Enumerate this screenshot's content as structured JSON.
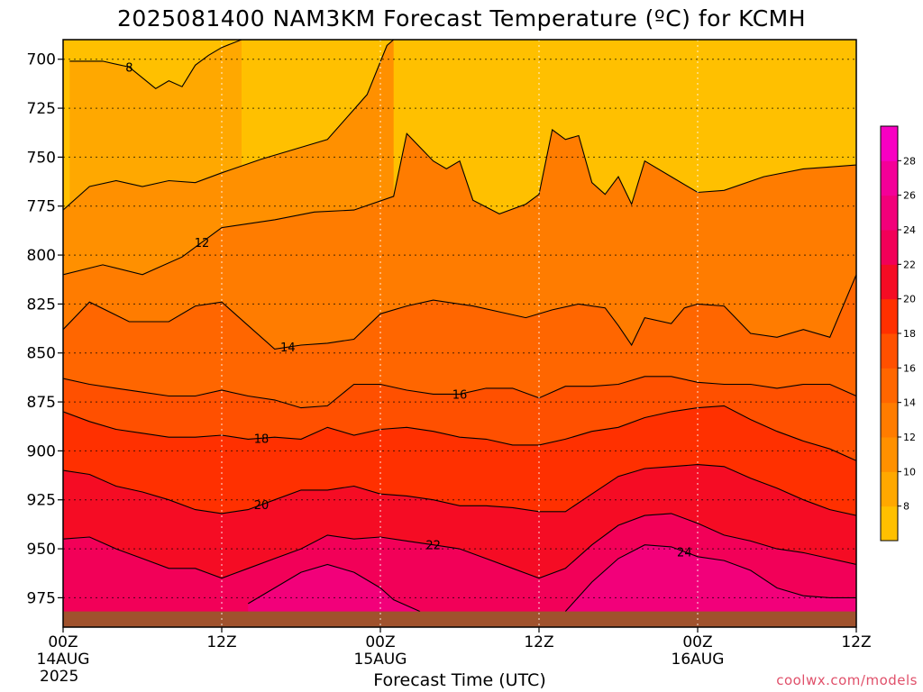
{
  "chart_data": {
    "type": "heatmap",
    "title": "2025081400 NAM3KM Forecast Temperature (ºC) for KCMH",
    "xlabel": "Forecast Time (UTC)",
    "credit": "coolwx.com/models",
    "x_ticks": [
      {
        "label": "00Z",
        "sub": "14AUG",
        "sub2": "2025",
        "hour": 0
      },
      {
        "label": "12Z",
        "sub": "",
        "sub2": "",
        "hour": 12
      },
      {
        "label": "00Z",
        "sub": "15AUG",
        "sub2": "",
        "hour": 24
      },
      {
        "label": "12Z",
        "sub": "",
        "sub2": "",
        "hour": 36
      },
      {
        "label": "00Z",
        "sub": "16AUG",
        "sub2": "",
        "hour": 48
      },
      {
        "label": "12Z",
        "sub": "",
        "sub2": "",
        "hour": 60
      }
    ],
    "x_range_hours": [
      0,
      60
    ],
    "y_axis": "pressure (hPa), inverted",
    "y_ticks": [
      700,
      725,
      750,
      775,
      800,
      825,
      850,
      875,
      900,
      925,
      950,
      975
    ],
    "y_range": [
      690,
      990
    ],
    "colorbar": {
      "levels": [
        6,
        8,
        10,
        12,
        14,
        16,
        18,
        20,
        22,
        24,
        26,
        28,
        30
      ],
      "tick_labels": [
        8,
        10,
        12,
        14,
        16,
        18,
        20,
        22,
        24,
        26,
        28
      ],
      "colors": [
        "#ffc000",
        "#ffa800",
        "#ff9000",
        "#ff7c00",
        "#ff6600",
        "#ff5000",
        "#ff3000",
        "#f50c24",
        "#f20058",
        "#f2007a",
        "#f40098",
        "#f800c2"
      ]
    },
    "surface_color": "#a0522d",
    "surface_pressure": 982,
    "contours": [
      {
        "value": 8,
        "points": [
          [
            0.5,
            701
          ],
          [
            3,
            701
          ],
          [
            5,
            704
          ],
          [
            7,
            715
          ],
          [
            8,
            711
          ],
          [
            9,
            714
          ],
          [
            10,
            703
          ],
          [
            11,
            698
          ],
          [
            12,
            694
          ],
          [
            13.5,
            690
          ]
        ],
        "label_at": 5
      },
      {
        "value": 10,
        "points": [
          [
            0,
            777
          ],
          [
            2,
            765
          ],
          [
            4,
            762
          ],
          [
            6,
            765
          ],
          [
            8,
            762
          ],
          [
            10,
            763
          ],
          [
            12,
            758
          ],
          [
            15,
            751
          ],
          [
            18,
            745
          ],
          [
            20,
            741
          ],
          [
            23,
            718
          ],
          [
            24.5,
            693
          ],
          [
            25,
            690
          ]
        ],
        "label_at": null
      },
      {
        "value": 12,
        "points": [
          [
            0,
            810
          ],
          [
            3,
            805
          ],
          [
            6,
            810
          ],
          [
            9,
            801
          ],
          [
            12,
            786
          ],
          [
            16,
            782
          ],
          [
            19,
            778
          ],
          [
            22,
            777
          ],
          [
            25,
            770
          ],
          [
            26,
            738
          ],
          [
            27,
            745
          ],
          [
            28,
            752
          ],
          [
            29,
            756
          ],
          [
            30,
            752
          ],
          [
            31,
            772
          ],
          [
            33,
            779
          ],
          [
            35,
            774
          ],
          [
            36,
            769
          ],
          [
            37,
            736
          ],
          [
            38,
            741
          ],
          [
            39,
            739
          ],
          [
            40,
            763
          ],
          [
            41,
            769
          ],
          [
            42,
            760
          ],
          [
            43,
            774
          ],
          [
            44,
            752
          ],
          [
            46,
            760
          ],
          [
            48,
            768
          ],
          [
            50,
            767
          ],
          [
            53,
            760
          ],
          [
            56,
            756
          ],
          [
            58,
            755
          ],
          [
            60,
            754
          ]
        ],
        "label_at": 10.5
      },
      {
        "value": 14,
        "points": [
          [
            0,
            838
          ],
          [
            2,
            824
          ],
          [
            5,
            834
          ],
          [
            8,
            834
          ],
          [
            10,
            826
          ],
          [
            12,
            824
          ],
          [
            14,
            836
          ],
          [
            16,
            848
          ],
          [
            18,
            846
          ],
          [
            20,
            845
          ],
          [
            22,
            843
          ],
          [
            24,
            830
          ],
          [
            26,
            826
          ],
          [
            28,
            823
          ],
          [
            31,
            826
          ],
          [
            33,
            829
          ],
          [
            35,
            832
          ],
          [
            37,
            828
          ],
          [
            39,
            825
          ],
          [
            41,
            827
          ],
          [
            42,
            836
          ],
          [
            43,
            846
          ],
          [
            44,
            832
          ],
          [
            46,
            835
          ],
          [
            47,
            827
          ],
          [
            48,
            825
          ],
          [
            50,
            826
          ],
          [
            52,
            840
          ],
          [
            54,
            842
          ],
          [
            56,
            838
          ],
          [
            58,
            842
          ],
          [
            60,
            810
          ]
        ],
        "label_at": 17
      },
      {
        "value": 16,
        "points": [
          [
            0,
            863
          ],
          [
            2,
            866
          ],
          [
            4,
            868
          ],
          [
            6,
            870
          ],
          [
            8,
            872
          ],
          [
            10,
            872
          ],
          [
            12,
            869
          ],
          [
            14,
            872
          ],
          [
            16,
            874
          ],
          [
            18,
            878
          ],
          [
            20,
            877
          ],
          [
            22,
            866
          ],
          [
            24,
            866
          ],
          [
            26,
            869
          ],
          [
            28,
            871
          ],
          [
            30,
            871
          ],
          [
            32,
            868
          ],
          [
            34,
            868
          ],
          [
            36,
            873
          ],
          [
            38,
            867
          ],
          [
            40,
            867
          ],
          [
            42,
            866
          ],
          [
            44,
            862
          ],
          [
            46,
            862
          ],
          [
            48,
            865
          ],
          [
            50,
            866
          ],
          [
            52,
            866
          ],
          [
            54,
            868
          ],
          [
            56,
            866
          ],
          [
            58,
            866
          ],
          [
            60,
            872
          ]
        ],
        "label_at": 30
      },
      {
        "value": 18,
        "points": [
          [
            0,
            880
          ],
          [
            2,
            885
          ],
          [
            4,
            889
          ],
          [
            6,
            891
          ],
          [
            8,
            893
          ],
          [
            10,
            893
          ],
          [
            12,
            892
          ],
          [
            14,
            894
          ],
          [
            16,
            893
          ],
          [
            18,
            894
          ],
          [
            20,
            888
          ],
          [
            22,
            892
          ],
          [
            24,
            889
          ],
          [
            26,
            888
          ],
          [
            28,
            890
          ],
          [
            30,
            893
          ],
          [
            32,
            894
          ],
          [
            34,
            897
          ],
          [
            36,
            897
          ],
          [
            38,
            894
          ],
          [
            40,
            890
          ],
          [
            42,
            888
          ],
          [
            44,
            883
          ],
          [
            46,
            880
          ],
          [
            48,
            878
          ],
          [
            50,
            877
          ],
          [
            52,
            884
          ],
          [
            54,
            890
          ],
          [
            56,
            895
          ],
          [
            58,
            899
          ],
          [
            60,
            905
          ]
        ],
        "label_at": 15
      },
      {
        "value": 20,
        "points": [
          [
            0,
            910
          ],
          [
            2,
            912
          ],
          [
            4,
            918
          ],
          [
            6,
            921
          ],
          [
            8,
            925
          ],
          [
            10,
            930
          ],
          [
            12,
            932
          ],
          [
            14,
            930
          ],
          [
            16,
            925
          ],
          [
            18,
            920
          ],
          [
            20,
            920
          ],
          [
            22,
            918
          ],
          [
            24,
            922
          ],
          [
            26,
            923
          ],
          [
            28,
            925
          ],
          [
            30,
            928
          ],
          [
            32,
            928
          ],
          [
            34,
            929
          ],
          [
            36,
            931
          ],
          [
            38,
            931
          ],
          [
            40,
            922
          ],
          [
            42,
            913
          ],
          [
            44,
            909
          ],
          [
            46,
            908
          ],
          [
            48,
            907
          ],
          [
            50,
            908
          ],
          [
            52,
            914
          ],
          [
            54,
            919
          ],
          [
            56,
            925
          ],
          [
            58,
            930
          ],
          [
            60,
            933
          ]
        ],
        "label_at": 15
      },
      {
        "value": 22,
        "points": [
          [
            0,
            945
          ],
          [
            2,
            944
          ],
          [
            4,
            950
          ],
          [
            6,
            955
          ],
          [
            8,
            960
          ],
          [
            10,
            960
          ],
          [
            12,
            965
          ],
          [
            14,
            960
          ],
          [
            16,
            955
          ],
          [
            18,
            950
          ],
          [
            20,
            943
          ],
          [
            22,
            945
          ],
          [
            24,
            944
          ],
          [
            26,
            946
          ],
          [
            28,
            948
          ],
          [
            30,
            950
          ],
          [
            32,
            955
          ],
          [
            34,
            960
          ],
          [
            36,
            965
          ],
          [
            38,
            960
          ],
          [
            40,
            948
          ],
          [
            42,
            938
          ],
          [
            44,
            933
          ],
          [
            46,
            932
          ],
          [
            48,
            937
          ],
          [
            50,
            943
          ],
          [
            52,
            946
          ],
          [
            54,
            950
          ],
          [
            56,
            952
          ],
          [
            58,
            955
          ],
          [
            60,
            958
          ]
        ],
        "label_at": 28
      },
      {
        "value": 24,
        "points": [
          [
            14,
            978
          ],
          [
            16,
            970
          ],
          [
            18,
            962
          ],
          [
            20,
            958
          ],
          [
            22,
            962
          ],
          [
            24,
            970
          ],
          [
            25,
            976
          ],
          [
            27,
            982
          ]
        ],
        "label_at": null
      },
      {
        "value": 24,
        "points": [
          [
            38,
            982
          ],
          [
            40,
            967
          ],
          [
            42,
            955
          ],
          [
            44,
            948
          ],
          [
            46,
            949
          ],
          [
            48,
            954
          ],
          [
            50,
            956
          ],
          [
            52,
            961
          ],
          [
            54,
            970
          ],
          [
            56,
            974
          ],
          [
            58,
            975
          ],
          [
            60,
            975
          ]
        ],
        "label_at": 47
      }
    ]
  }
}
